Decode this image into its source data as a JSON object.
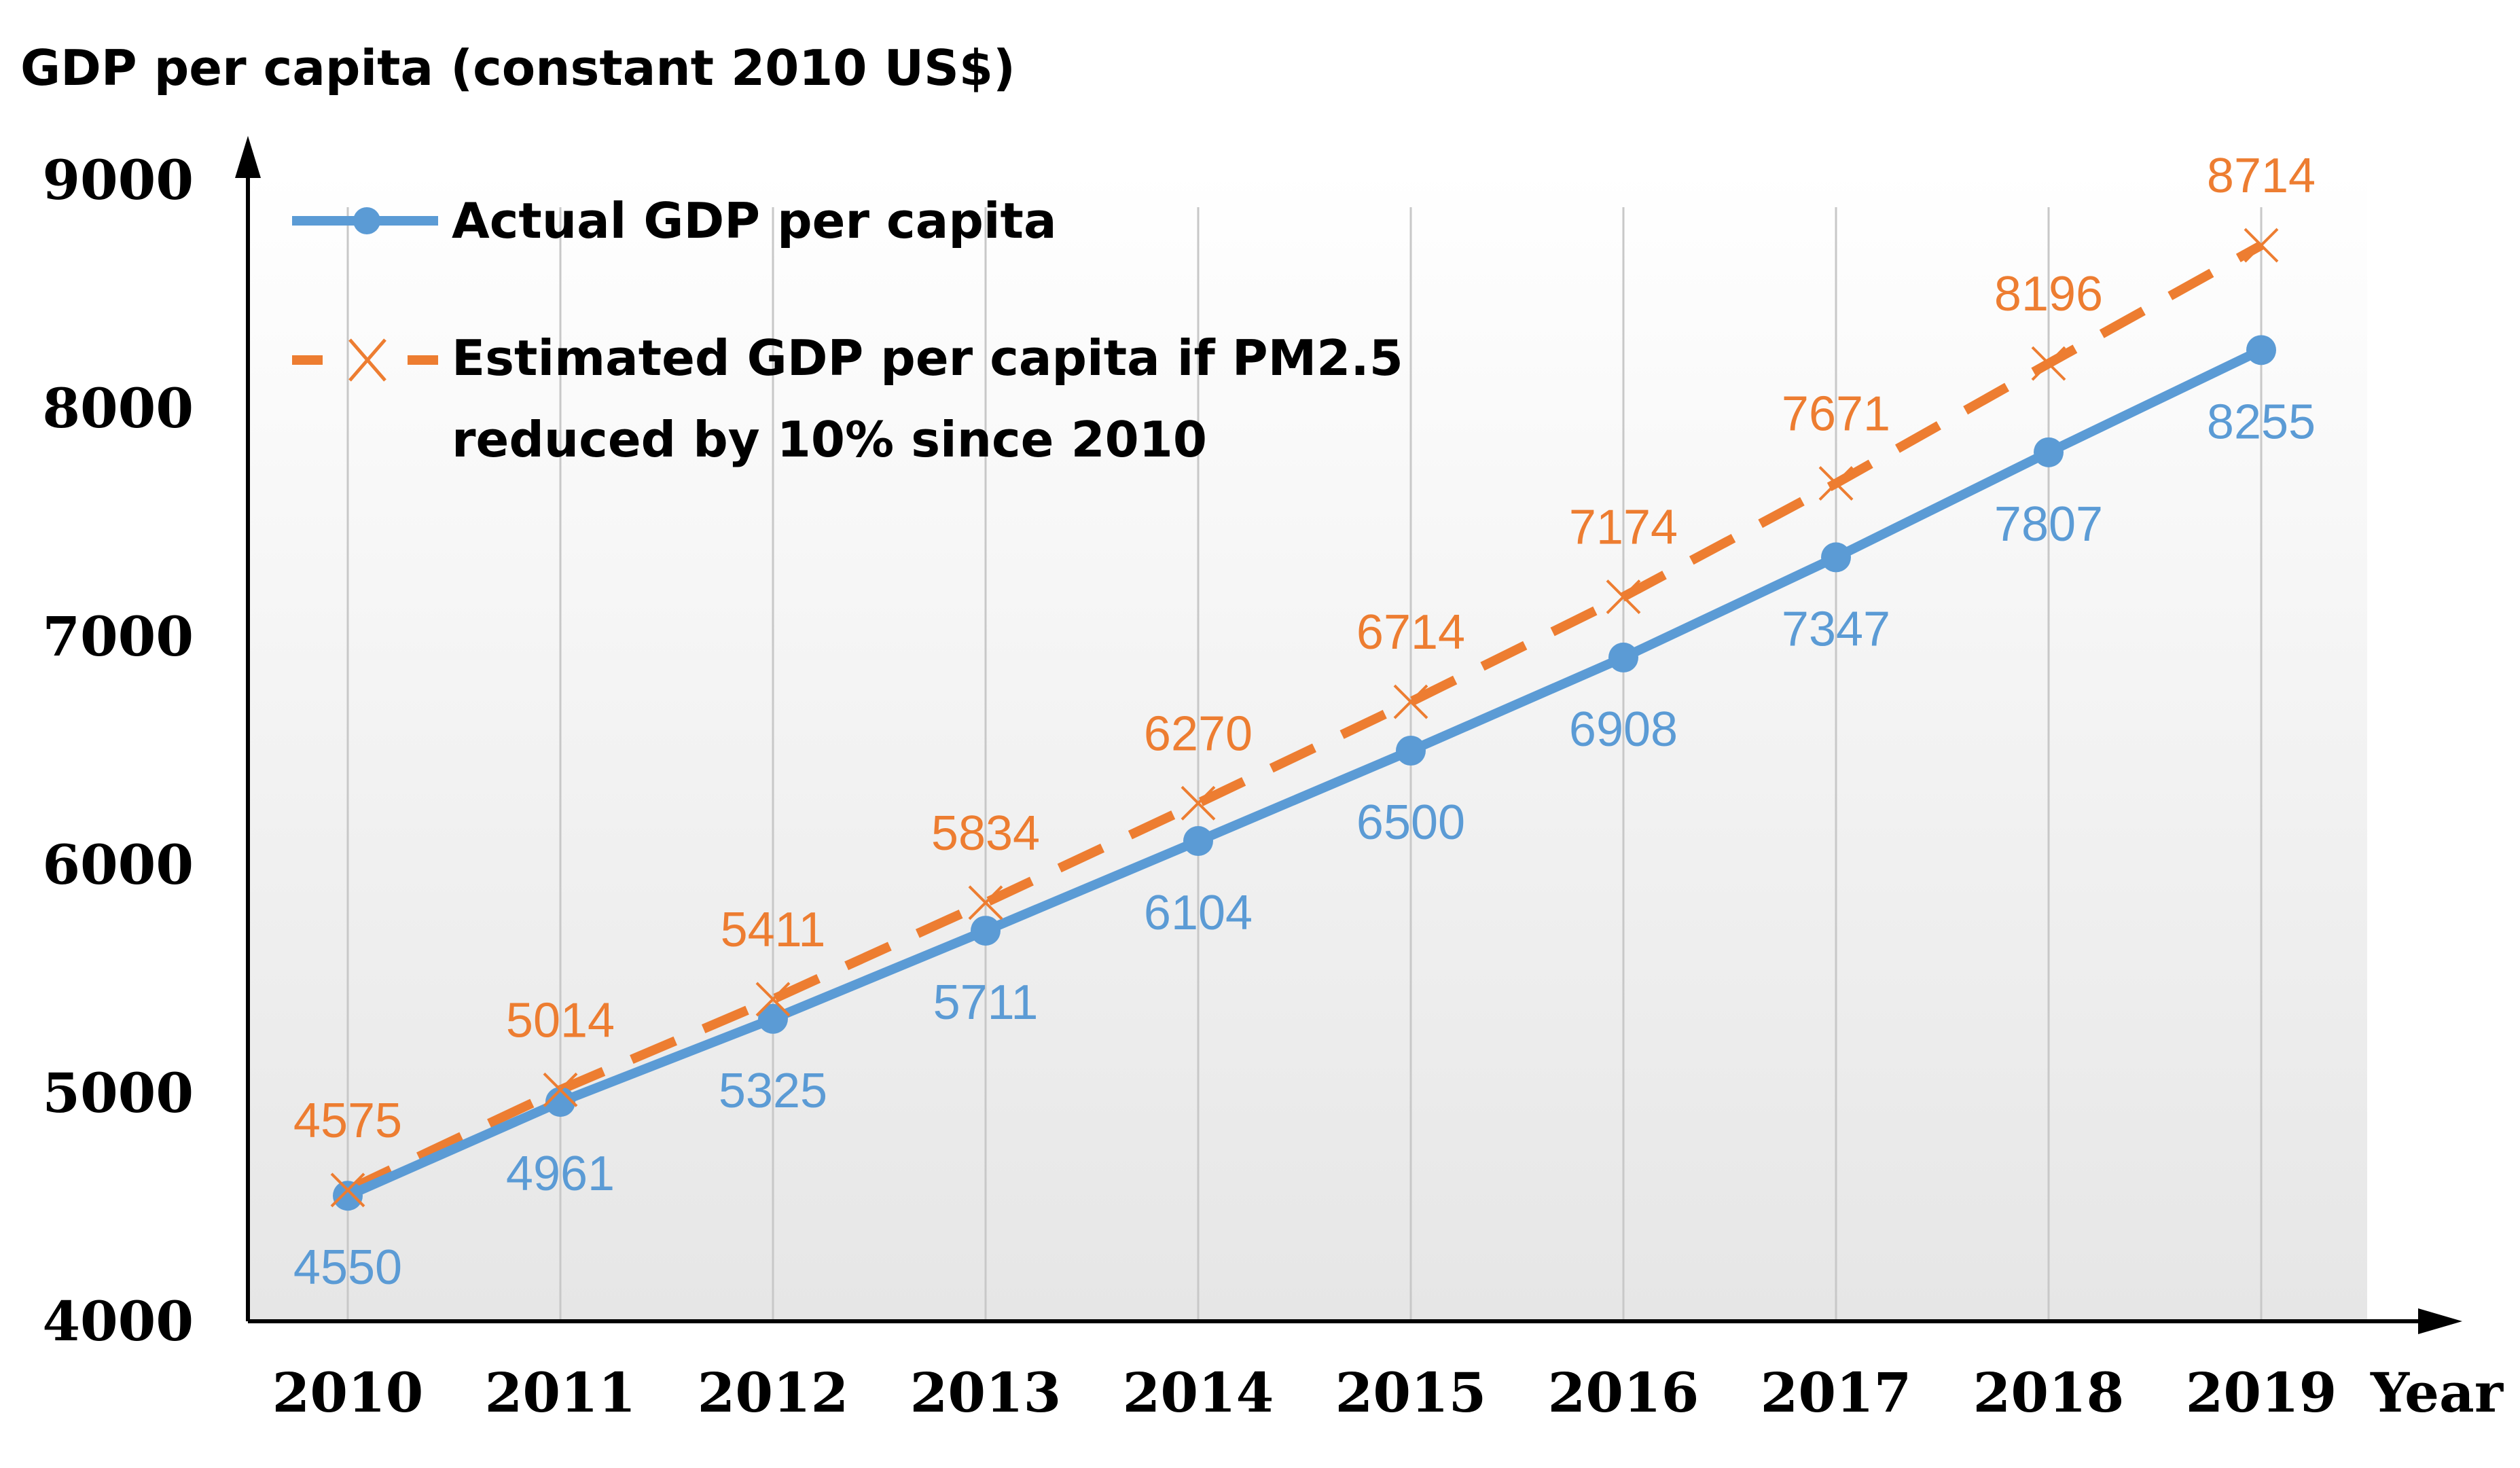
{
  "chart_data": {
    "type": "line",
    "ylabel": "GDP per capita  (constant  2010 US$)",
    "xlabel": "Year",
    "x": [
      "2010",
      "2011",
      "2012",
      "2013",
      "2014",
      "2015",
      "2016",
      "2017",
      "2018",
      "2019"
    ],
    "ylim": [
      4000,
      9000
    ],
    "yticks": [
      "4000",
      "5000",
      "6000",
      "7000",
      "8000",
      "9000"
    ],
    "series": [
      {
        "name": "Actual GDP per capita",
        "values": [
          4550,
          4961,
          5325,
          5711,
          6104,
          6500,
          6908,
          7347,
          7807,
          8255
        ],
        "color": "#5b9bd5",
        "style": "solid",
        "marker": "circle"
      },
      {
        "name_lines": [
          "Estimated GDP per capita if PM2.5",
          "reduced by 10% since 2010"
        ],
        "values": [
          4575,
          5014,
          5411,
          5834,
          6270,
          6714,
          7174,
          7671,
          8196,
          8714
        ],
        "color": "#ed7d31",
        "style": "dashed",
        "marker": "x"
      }
    ],
    "grid": "vertical",
    "legend": "top-left"
  }
}
